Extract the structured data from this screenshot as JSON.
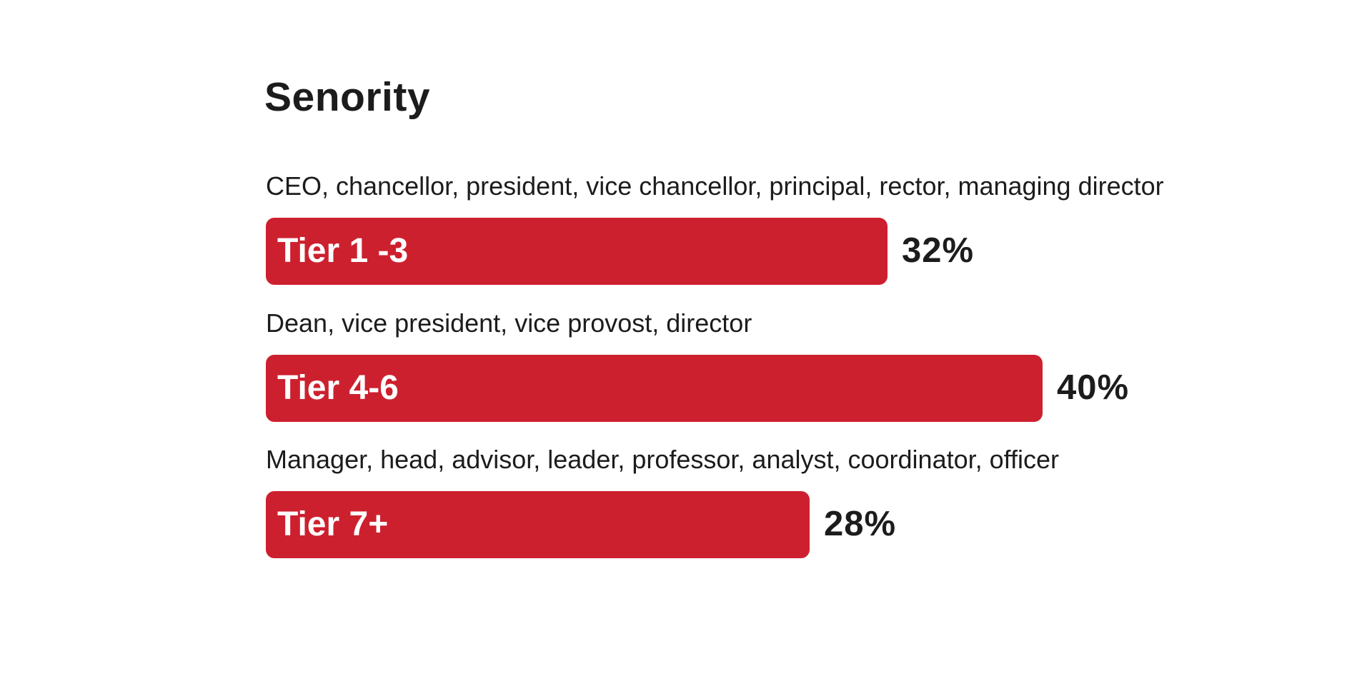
{
  "chart_data": {
    "type": "bar",
    "title": "Senority",
    "categories": [
      "Tier 1 -3",
      "Tier 4-6",
      "Tier 7+"
    ],
    "descriptions": [
      "CEO, chancellor, president, vice chancellor, principal, rector, managing director",
      "Dean, vice president, vice provost, director",
      "Manager, head, advisor, leader, professor, analyst, coordinator, officer"
    ],
    "values": [
      32,
      40,
      28
    ],
    "value_labels": [
      "32%",
      "40%",
      "28%"
    ],
    "bar_color": "#cd202e",
    "orientation": "horizontal",
    "xlim": [
      0,
      40
    ],
    "grid": false,
    "legend": "none"
  }
}
